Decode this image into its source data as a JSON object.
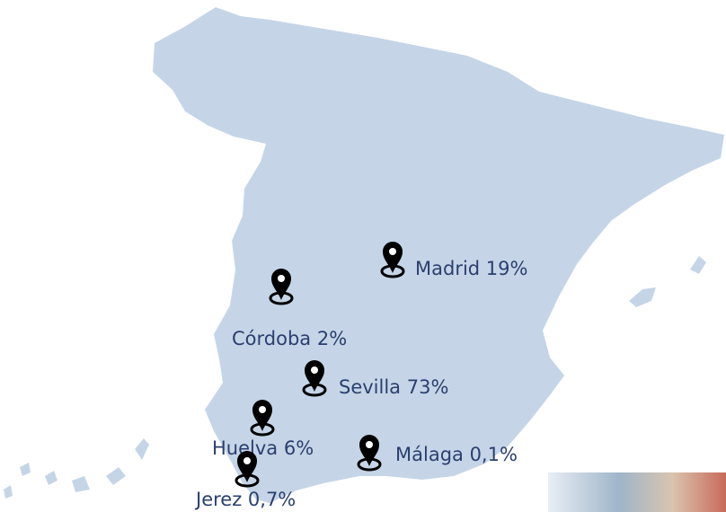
{
  "markers": [
    {
      "label": "Madrid 19%"
    },
    {
      "label": "Córdoba 2%"
    },
    {
      "label": "Sevilla 73%"
    },
    {
      "label": "Huelva 6%"
    },
    {
      "label": "Málaga 0,1%"
    },
    {
      "label": "Jerez 0,7%"
    }
  ]
}
